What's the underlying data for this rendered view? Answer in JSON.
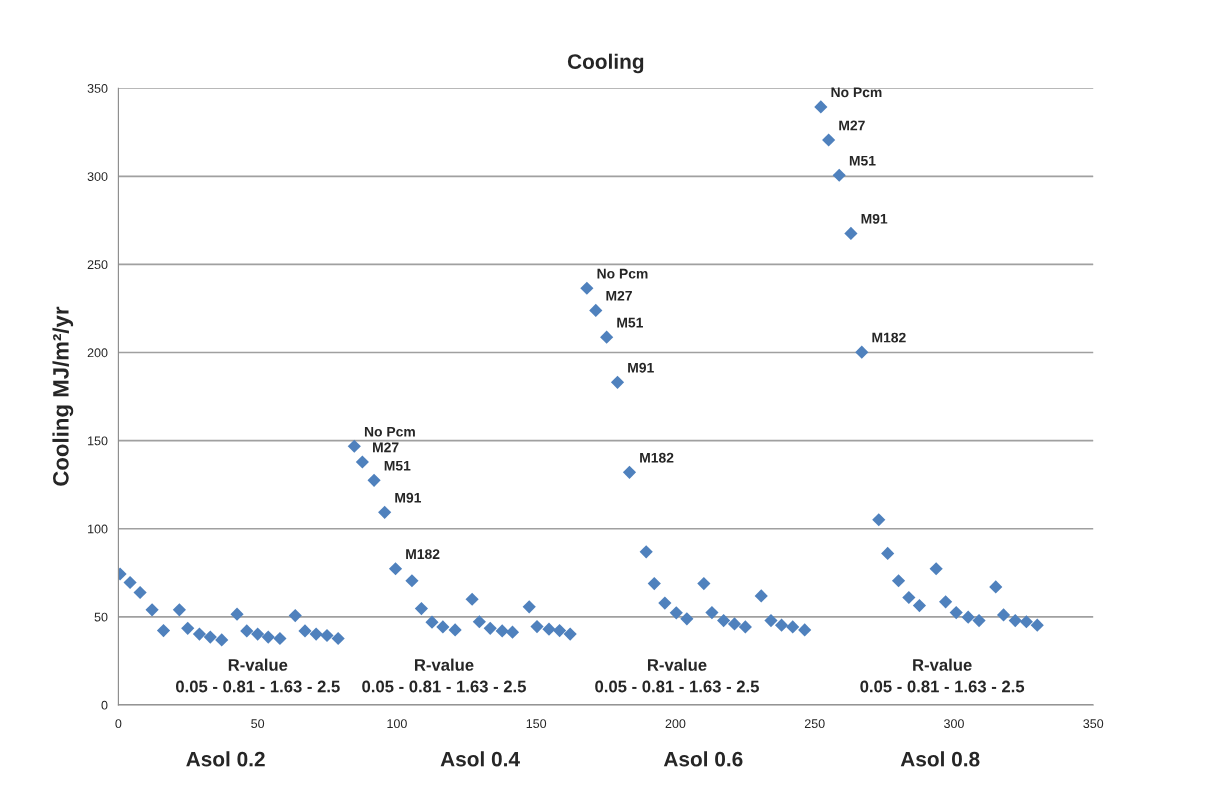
{
  "chart_data": {
    "type": "scatter",
    "title": "Cooling",
    "ylabel": "Cooling MJ/m²/yr",
    "x": [
      0.6,
      4.2,
      7.8,
      12.1,
      16.2,
      21.9,
      24.9,
      29.1,
      33.0,
      37.1,
      42.6,
      46.1,
      50.0,
      53.8,
      58.0,
      63.5,
      67.0,
      71.0,
      74.9,
      78.9,
      84.7,
      87.6,
      91.8,
      95.6,
      99.5,
      105.4,
      108.8,
      112.6,
      116.5,
      120.9,
      127.0,
      129.6,
      133.5,
      137.8,
      141.5,
      147.5,
      150.3,
      154.6,
      158.4,
      162.2,
      168.2,
      171.4,
      175.3,
      179.2,
      183.5,
      189.5,
      192.4,
      196.2,
      200.3,
      204.1,
      210.2,
      213.1,
      217.3,
      221.2,
      225.1,
      230.8,
      234.3,
      238.1,
      242.1,
      246.4,
      252.2,
      255.0,
      258.8,
      263.0,
      266.9,
      273.0,
      276.2,
      280.1,
      283.8,
      287.6,
      293.6,
      297.0,
      300.8,
      305.1,
      309.0,
      315.0,
      317.8,
      322.0,
      326.0,
      329.9
    ],
    "series": [
      {
        "color": "#4f81bd",
        "values": [
          74.3,
          69.5,
          63.8,
          54,
          42.2,
          54,
          43.5,
          40.2,
          38.5,
          36.9,
          51.5,
          42,
          40.2,
          38.5,
          37.7,
          50.7,
          42,
          40.2,
          39.4,
          37.7,
          146.8,
          137.9,
          127.5,
          109.3,
          77.3,
          70.5,
          54.7,
          47,
          44.3,
          42.6,
          60,
          47.2,
          43.5,
          42,
          41.3,
          55.7,
          44.5,
          43,
          42.2,
          40.2,
          236.5,
          223.9,
          208.7,
          183.1,
          132,
          86.9,
          68.9,
          57.8,
          52.3,
          48.9,
          68.9,
          52.4,
          47.9,
          46,
          44.3,
          61.9,
          47.9,
          45.3,
          44.3,
          42.6,
          339.4,
          320.6,
          300.6,
          267.6,
          200.2,
          105.1,
          86,
          70.5,
          61,
          56.4,
          77.3,
          58.5,
          52.4,
          49.8,
          47.9,
          67,
          51.1,
          47.9,
          47.2,
          45.3
        ]
      }
    ],
    "marker": "diamond",
    "grid": "y",
    "xlim": [
      0,
      350
    ],
    "xticks": [
      0,
      50,
      100,
      150,
      200,
      250,
      300,
      350
    ],
    "ylim": [
      0,
      350
    ],
    "yticks": [
      0,
      50,
      100,
      150,
      200,
      250,
      300,
      350
    ],
    "annotations": [
      {
        "text": "No Pcm",
        "x": 84.7,
        "y": 146.8
      },
      {
        "text": "M27",
        "x": 87.6,
        "y": 137.9
      },
      {
        "text": "M51",
        "x": 91.8,
        "y": 127.5
      },
      {
        "text": "M91",
        "x": 95.6,
        "y": 109.3
      },
      {
        "text": "M182",
        "x": 99.5,
        "y": 77.3
      },
      {
        "text": "No Pcm",
        "x": 168.2,
        "y": 236.5
      },
      {
        "text": "M27",
        "x": 171.4,
        "y": 223.9
      },
      {
        "text": "M51",
        "x": 175.3,
        "y": 208.7
      },
      {
        "text": "M91",
        "x": 179.2,
        "y": 183.1
      },
      {
        "text": "M182",
        "x": 183.5,
        "y": 132
      },
      {
        "text": "No Pcm",
        "x": 252.2,
        "y": 339.4
      },
      {
        "text": "M27",
        "x": 255.0,
        "y": 320.6
      },
      {
        "text": "M51",
        "x": 258.8,
        "y": 300.6
      },
      {
        "text": "M91",
        "x": 263.0,
        "y": 267.6
      },
      {
        "text": "M182",
        "x": 266.9,
        "y": 200.2
      },
      "R-value\n0.05 - 0.81 - 1.63 - 2.5",
      "Asol 0.2",
      "R-value\n0.05 - 0.81 - 1.63 - 2.5",
      "Asol 0.4",
      "R-value\n0.05 - 0.81 - 1.63 - 2.5",
      "Asol 0.6",
      "R-value\n0.05 - 0.81 - 1.63 - 2.5",
      "Asol 0.8"
    ]
  }
}
